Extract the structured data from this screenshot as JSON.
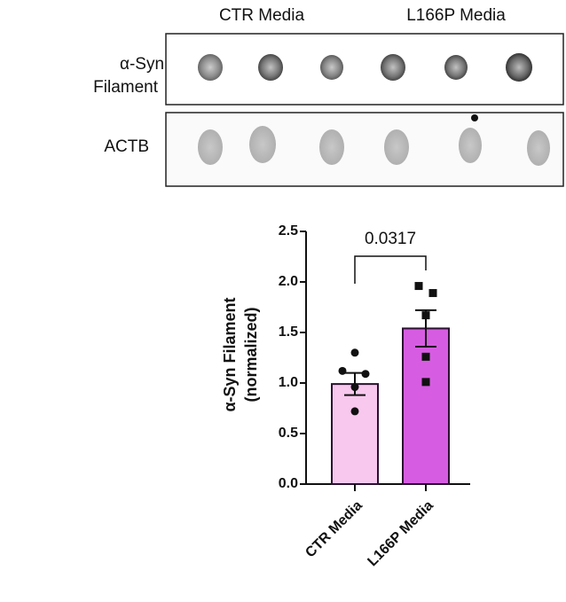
{
  "blot": {
    "column_labels": [
      "CTR Media",
      "L166P Media"
    ],
    "row_labels": [
      [
        "α-Syn",
        "Filament"
      ],
      [
        "ACTB"
      ]
    ]
  },
  "chart_data": {
    "type": "bar",
    "categories": [
      "CTR Media",
      "L166P Media"
    ],
    "values": [
      0.99,
      1.54
    ],
    "errors": [
      0.11,
      0.18
    ],
    "points": [
      [
        1.3,
        1.12,
        1.09,
        0.96,
        0.72
      ],
      [
        1.96,
        1.89,
        1.67,
        1.26,
        1.01
      ]
    ],
    "colors": [
      "#f8c8ee",
      "#d65de2"
    ],
    "ylabel": [
      "α-Syn Filament",
      "(normalized)"
    ],
    "ylim": [
      0,
      2.5
    ],
    "yticks": [
      {
        "value": 0,
        "label": "0.0"
      },
      0.5,
      {
        "value": 1,
        "label": "1.0"
      },
      1.5,
      {
        "value": 2,
        "label": "2.0"
      },
      2.5
    ],
    "annotation": "0.0317"
  }
}
